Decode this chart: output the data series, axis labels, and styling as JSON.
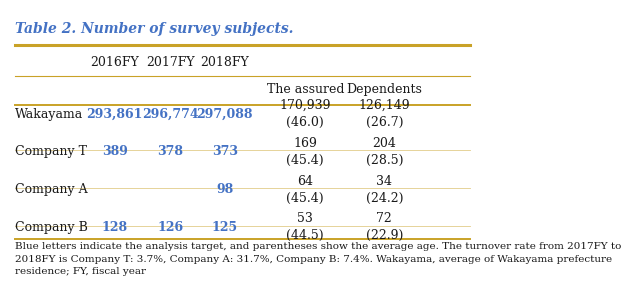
{
  "title": "Table 2. Number of survey subjects.",
  "title_color": "#4472C4",
  "title_fontsize": 10,
  "rows": [
    {
      "label": "Wakayama",
      "fy2016": "293,861",
      "fy2017": "296,774",
      "fy2018": "297,088",
      "assured": "170,939\n(46.0)",
      "dependents": "126,149\n(26.7)",
      "blue_cols": [
        1,
        2,
        3
      ]
    },
    {
      "label": "Company T",
      "fy2016": "389",
      "fy2017": "378",
      "fy2018": "373",
      "assured": "169\n(45.4)",
      "dependents": "204\n(28.5)",
      "blue_cols": [
        1,
        2,
        3
      ]
    },
    {
      "label": "Company A",
      "fy2016": "",
      "fy2017": "",
      "fy2018": "98",
      "assured": "64\n(45.4)",
      "dependents": "34\n(24.2)",
      "blue_cols": [
        3
      ]
    },
    {
      "label": "Company B",
      "fy2016": "128",
      "fy2017": "126",
      "fy2018": "125",
      "assured": "53\n(44.5)",
      "dependents": "72\n(22.9)",
      "blue_cols": [
        1,
        2,
        3
      ]
    }
  ],
  "footnote": "Blue letters indicate the analysis target, and parentheses show the average age. The turnover rate from 2017FY to\n2018FY is Company T: 3.7%, Company A: 31.7%, Company B: 7.4%. Wakayama, average of Wakayama prefecture\nresidence; FY, fiscal year",
  "blue_color": "#4472C4",
  "black_color": "#1a1a1a",
  "gold_color": "#C9A227",
  "bg_color": "#FFFFFF",
  "header_fontsize": 9,
  "cell_fontsize": 9,
  "footnote_fontsize": 7.5
}
